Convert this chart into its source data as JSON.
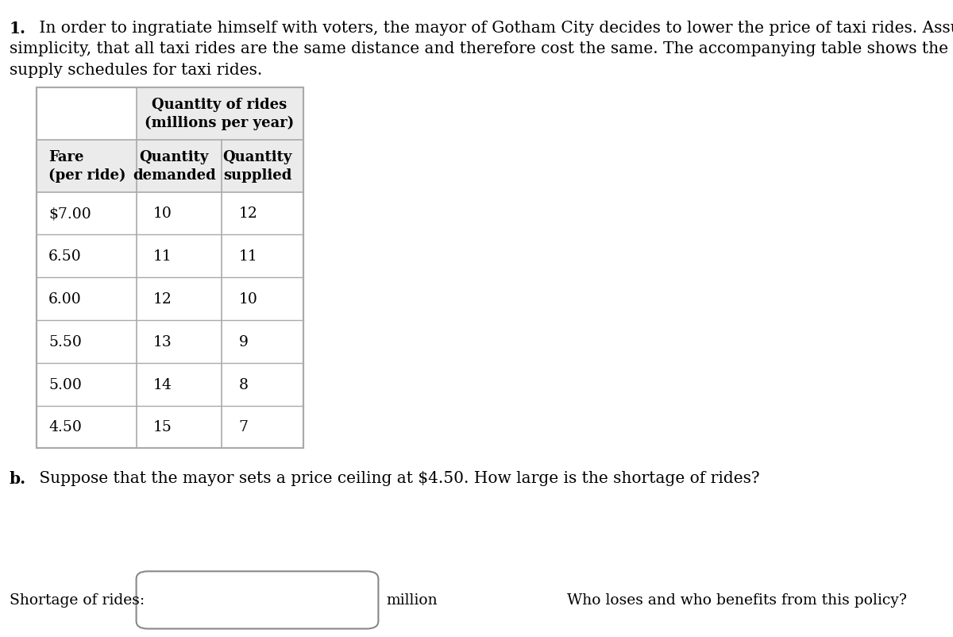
{
  "title_line1_bold": "1.",
  "title_line1_rest": " In order to ingratiate himself with voters, the mayor of Gotham City decides to lower the price of taxi rides. Assume, for",
  "title_line2": "simplicity, that all taxi rides are the same distance and therefore cost the same. The accompanying table shows the demand and",
  "title_line3": "supply schedules for taxi rides.",
  "table_top_header": "Quantity of rides\n(millions per year)",
  "col1_header": "Fare\n(per ride)",
  "col2_header": "Quantity\ndemanded",
  "col3_header": "Quantity\nsupplied",
  "fares": [
    "$7.00",
    "6.50",
    "6.00",
    "5.50",
    "5.00",
    "4.50"
  ],
  "qty_demanded": [
    "10",
    "11",
    "12",
    "13",
    "14",
    "15"
  ],
  "qty_supplied": [
    "12",
    "11",
    "10",
    "9",
    "8",
    "7"
  ],
  "part_b_bold": "b.",
  "part_b_rest": " Suppose that the mayor sets a price ceiling at $4.50. How large is the shortage of rides?",
  "shortage_label": "Shortage of rides:",
  "shortage_unit": "million",
  "who_text": "Who loses and who benefits from this policy?",
  "background_color": "#ffffff",
  "text_color": "#000000",
  "table_header_bg": "#ebebeb",
  "table_line_color": "#aaaaaa",
  "box_border_color": "#888888",
  "font_size_body": 14.5,
  "font_size_table_header": 13,
  "font_size_table_data": 13.5,
  "font_size_bottom": 13.5
}
